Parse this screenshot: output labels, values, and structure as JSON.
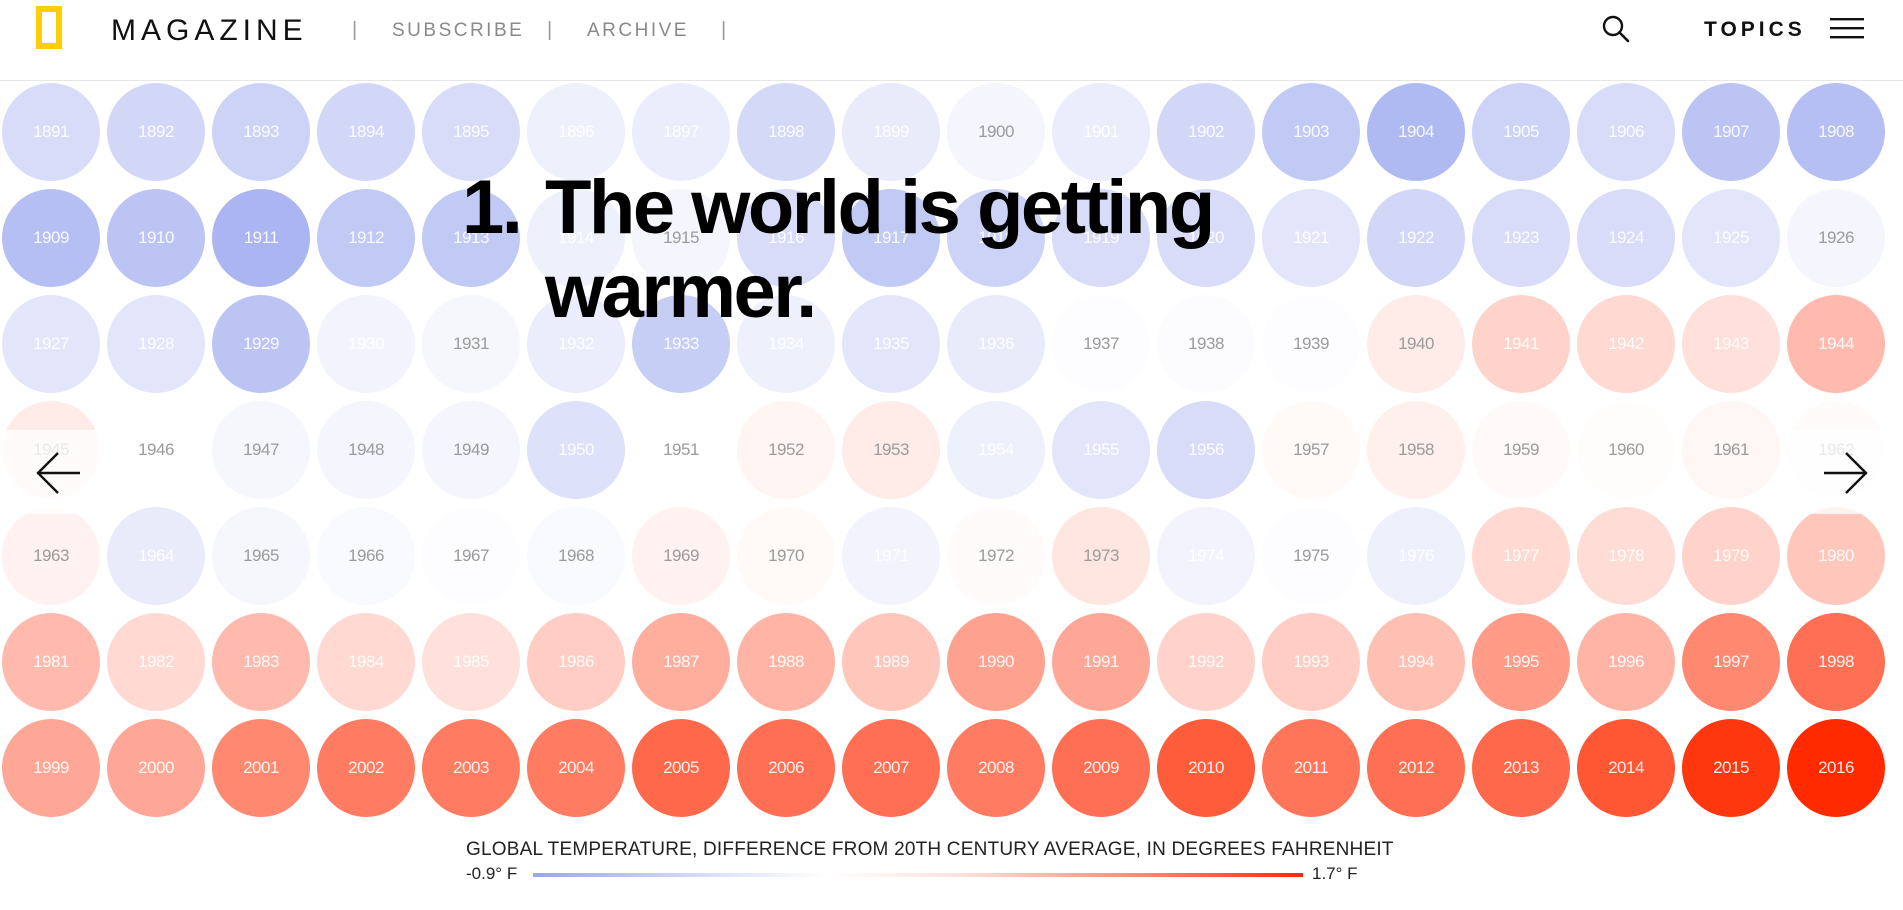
{
  "header": {
    "brand": "MAGAZINE",
    "separator": "|",
    "nav": [
      "SUBSCRIBE",
      "ARCHIVE"
    ],
    "topics_label": "TOPICS",
    "icons": {
      "logo": "nat-geo-yellow-border-logo",
      "search": "search-icon",
      "menu": "hamburger-menu-icon"
    }
  },
  "headline": {
    "number": "1.",
    "line1": "The world is getting",
    "line2": "warmer."
  },
  "colors": {
    "cold": "#9aa6ee",
    "neutral": "#ffffff",
    "hot": "#ff2a00"
  },
  "chart_data": {
    "type": "heatmap",
    "unit": "°F",
    "scale_min": -0.9,
    "scale_max": 1.7,
    "note": "Each circle is a year; color intensity encodes the value on the legend scale.",
    "years": [
      1891,
      1892,
      1893,
      1894,
      1895,
      1896,
      1897,
      1898,
      1899,
      1900,
      1901,
      1902,
      1903,
      1904,
      1905,
      1906,
      1907,
      1908,
      1909,
      1910,
      1911,
      1912,
      1913,
      1914,
      1915,
      1916,
      1917,
      1918,
      1919,
      1920,
      1921,
      1922,
      1923,
      1924,
      1925,
      1926,
      1927,
      1928,
      1929,
      1930,
      1931,
      1932,
      1933,
      1934,
      1935,
      1936,
      1937,
      1938,
      1939,
      1940,
      1941,
      1942,
      1943,
      1944,
      1945,
      1946,
      1947,
      1948,
      1949,
      1950,
      1951,
      1952,
      1953,
      1954,
      1955,
      1956,
      1957,
      1958,
      1959,
      1960,
      1961,
      1962,
      1963,
      1964,
      1965,
      1966,
      1967,
      1968,
      1969,
      1970,
      1971,
      1972,
      1973,
      1974,
      1975,
      1976,
      1977,
      1978,
      1979,
      1980,
      1981,
      1982,
      1983,
      1984,
      1985,
      1986,
      1987,
      1988,
      1989,
      1990,
      1991,
      1992,
      1993,
      1994,
      1995,
      1996,
      1997,
      1998,
      1999,
      2000,
      2001,
      2002,
      2003,
      2004,
      2005,
      2006,
      2007,
      2008,
      2009,
      2010,
      2011,
      2012,
      2013,
      2014,
      2015,
      2016
    ],
    "values": [
      -0.35,
      -0.4,
      -0.45,
      -0.4,
      -0.35,
      -0.15,
      -0.18,
      -0.38,
      -0.2,
      -0.1,
      -0.18,
      -0.4,
      -0.55,
      -0.7,
      -0.45,
      -0.35,
      -0.6,
      -0.65,
      -0.65,
      -0.6,
      -0.75,
      -0.55,
      -0.55,
      -0.15,
      -0.1,
      -0.35,
      -0.55,
      -0.45,
      -0.35,
      -0.35,
      -0.25,
      -0.4,
      -0.35,
      -0.35,
      -0.25,
      -0.1,
      -0.25,
      -0.25,
      -0.6,
      -0.12,
      -0.08,
      -0.18,
      -0.5,
      -0.15,
      -0.25,
      -0.2,
      -0.02,
      -0.03,
      -0.02,
      0.15,
      0.35,
      0.3,
      0.25,
      0.55,
      0.15,
      0.0,
      -0.08,
      -0.1,
      -0.1,
      -0.3,
      0.0,
      0.08,
      0.15,
      -0.15,
      -0.25,
      -0.35,
      0.05,
      0.12,
      0.04,
      0.02,
      0.06,
      0.03,
      0.1,
      -0.2,
      -0.08,
      -0.05,
      -0.02,
      -0.05,
      0.1,
      0.05,
      -0.12,
      0.03,
      0.2,
      -0.12,
      -0.02,
      -0.15,
      0.3,
      0.28,
      0.35,
      0.45,
      0.55,
      0.3,
      0.55,
      0.3,
      0.25,
      0.4,
      0.65,
      0.6,
      0.45,
      0.75,
      0.7,
      0.35,
      0.4,
      0.5,
      0.8,
      0.6,
      0.95,
      1.15,
      0.7,
      0.7,
      0.95,
      1.05,
      1.05,
      1.05,
      1.2,
      1.15,
      1.15,
      1.05,
      1.15,
      1.3,
      1.1,
      1.15,
      1.2,
      1.35,
      1.6,
      1.7
    ]
  },
  "legend": {
    "title": "GLOBAL TEMPERATURE, DIFFERENCE FROM 20TH CENTURY AVERAGE, IN DEGREES FAHRENHEIT",
    "min_label": "-0.9° F",
    "max_label": "1.7° F"
  }
}
